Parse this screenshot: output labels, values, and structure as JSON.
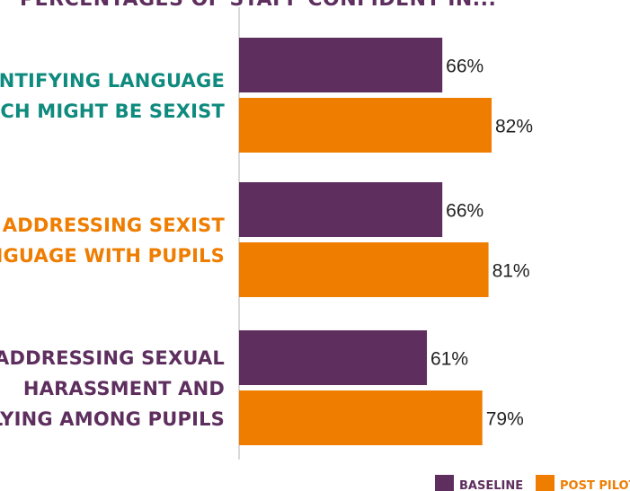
{
  "chart_data": {
    "type": "bar",
    "orientation": "horizontal",
    "title": "PERCENTAGES OF STAFF CONFIDENT IN...",
    "categories": [
      [
        "IDENTIFYING LANGUAGE",
        "WHICH MIGHT BE SEXIST"
      ],
      [
        "ADDRESSING SEXIST",
        "LANGUAGE WITH PUPILS"
      ],
      [
        "ADDRESSING SEXUAL",
        "HARASSMENT AND",
        "BULLYING AMONG PUPILS"
      ]
    ],
    "category_colors": [
      "#0f8a7e",
      "#ee7d00",
      "#5e2f5e"
    ],
    "series": [
      {
        "name": "BASELINE",
        "values": [
          66,
          66,
          61
        ],
        "color": "#5e2f5e"
      },
      {
        "name": "POST PILOT",
        "values": [
          82,
          81,
          79
        ],
        "color": "#ee7d00"
      }
    ],
    "value_suffix": "%",
    "xlim": [
      0,
      100
    ],
    "grid": false,
    "legend": "bottom-right",
    "title_color": "#5e2f5e",
    "axis_color": "#b5b5b5"
  }
}
